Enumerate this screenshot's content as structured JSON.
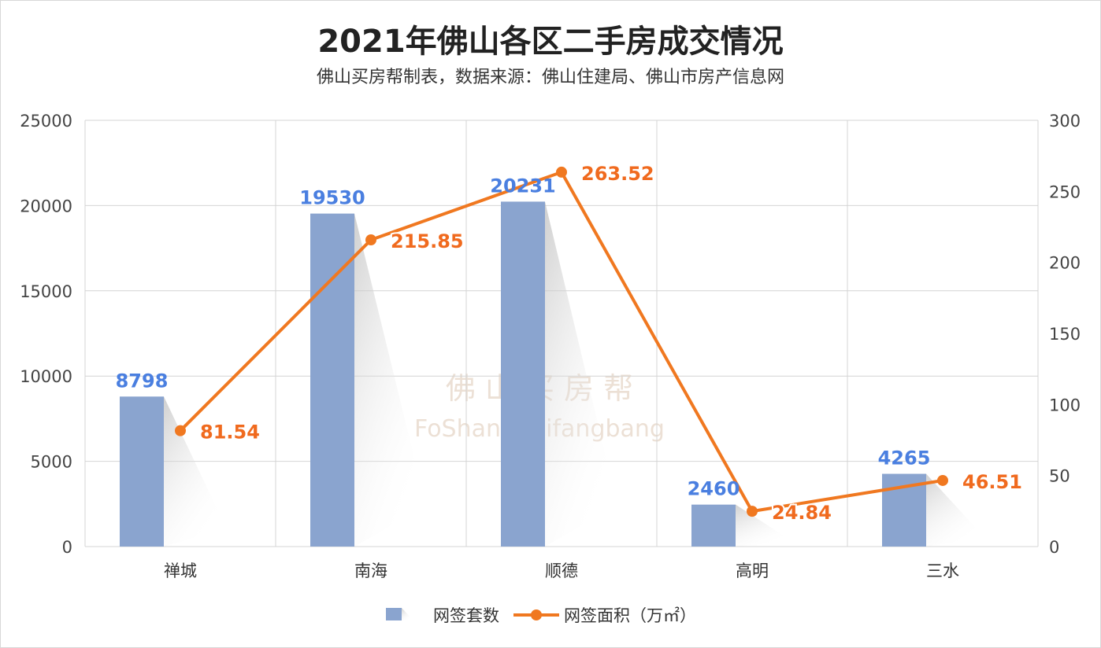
{
  "chart_data": {
    "type": "bar+line",
    "title": "2021年佛山各区二手房成交情况",
    "subtitle": "佛山买房帮制表，数据来源：佛山住建局、佛山市房产信息网",
    "categories": [
      "禅城",
      "南海",
      "顺德",
      "高明",
      "三水"
    ],
    "series": [
      {
        "name": "网签套数",
        "type": "bar",
        "axis": "left",
        "values": [
          8798,
          19530,
          20231,
          2460,
          4265
        ],
        "color": "#8aa4cf",
        "label_color": "#4a7fe0"
      },
      {
        "name": "网签面积（万㎡）",
        "type": "line",
        "axis": "right",
        "values": [
          81.54,
          215.85,
          263.52,
          24.84,
          46.51
        ],
        "color": "#f07820",
        "label_color": "#f06a1e"
      }
    ],
    "y_left": {
      "lim": [
        0,
        25000
      ],
      "ticks": [
        "0",
        "5000",
        "10000",
        "15000",
        "20000",
        "25000"
      ]
    },
    "y_right": {
      "lim": [
        0,
        300
      ],
      "ticks": [
        "0",
        "50",
        "100",
        "150",
        "200",
        "250",
        "300"
      ]
    },
    "grid": true,
    "legend": "bottom",
    "watermark": {
      "cn": "佛 山 买 房 帮",
      "en": "FoShan maifangbang"
    }
  }
}
